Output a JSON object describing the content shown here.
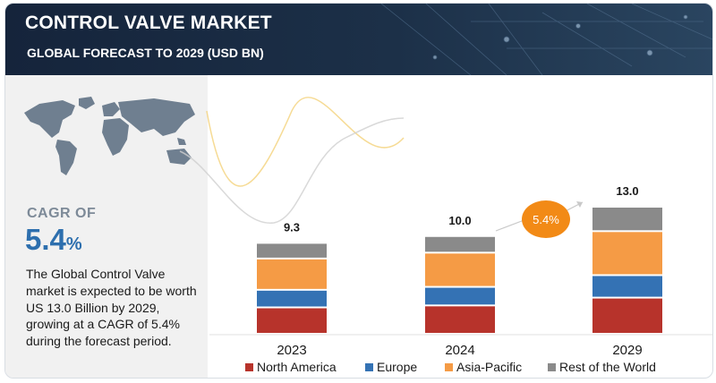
{
  "header": {
    "title": "CONTROL VALVE MARKET",
    "subtitle": "GLOBAL FORECAST TO 2029 (USD BN)"
  },
  "left_panel": {
    "cagr_label": "CAGR OF",
    "cagr_value": "5.4",
    "cagr_unit": "%",
    "description": "The Global Control Valve market is expected to be worth US 13.0 Billion by 2029, growing at a CAGR of 5.4% during the forecast period."
  },
  "colors": {
    "north_america": "#b7332b",
    "europe": "#3472b4",
    "asia_pacific": "#f59b45",
    "rest_of_world": "#8a8a8a",
    "cagr_badge": "#f28a16",
    "accent_blue": "#2d6fae"
  },
  "chart_data": {
    "type": "bar",
    "stacked": true,
    "categories": [
      "2023",
      "2024",
      "2029"
    ],
    "totals": [
      9.3,
      10.0,
      13.0
    ],
    "total_labels": [
      "9.3",
      "10.0",
      "13.0"
    ],
    "series": [
      {
        "name": "North America",
        "values": [
          2.7,
          2.9,
          3.7
        ]
      },
      {
        "name": "Europe",
        "values": [
          1.8,
          1.9,
          2.3
        ]
      },
      {
        "name": "Asia-Pacific",
        "values": [
          3.2,
          3.5,
          4.5
        ]
      },
      {
        "name": "Rest of the World",
        "values": [
          1.6,
          1.7,
          2.5
        ]
      }
    ],
    "legend_position": "bottom",
    "annotation": {
      "text": "5.4%",
      "between": [
        "2024",
        "2029"
      ]
    },
    "ylim": [
      0,
      13.0
    ],
    "grid": false
  }
}
